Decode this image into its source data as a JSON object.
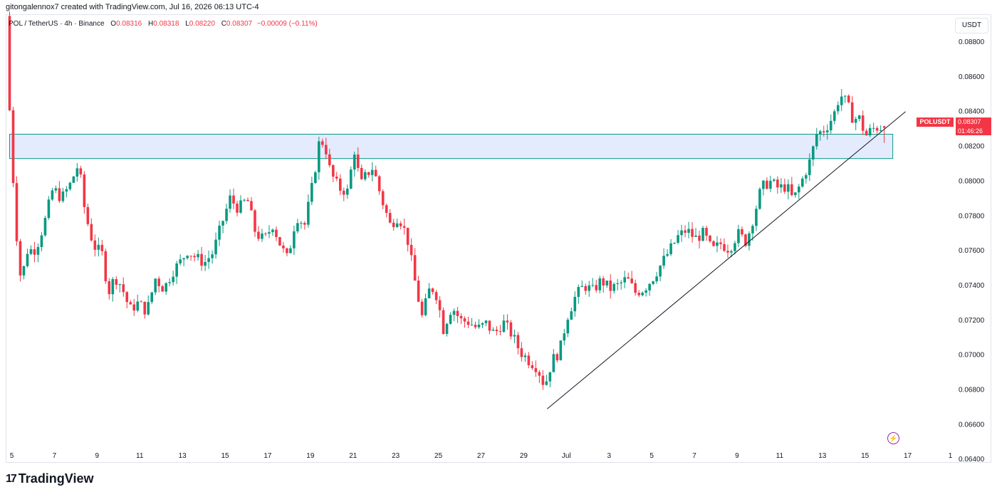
{
  "header": {
    "text": "gitongalennox7 created with TradingView.com, Jul 16, 2026 06:13 UTC-4"
  },
  "legend": {
    "symbol": "POL / TetherUS · 4h · Binance",
    "o_label": "O",
    "o": "0.08316",
    "h_label": "H",
    "h": "0.08318",
    "l_label": "L",
    "l": "0.08220",
    "c_label": "C",
    "c": "0.08307",
    "change": "−0.00009 (−0.11%)"
  },
  "currency": "USDT",
  "price_tag": {
    "symbol": "POLUSDT",
    "price": "0.08307",
    "countdown": "01:46:26"
  },
  "brand": {
    "name": "TradingView",
    "mark": "17"
  },
  "colors": {
    "up": "#089981",
    "down": "#f23645",
    "zone_fill": "#e3ebfd",
    "zone_border": "#089981",
    "trendline": "#131722"
  },
  "chart_data": {
    "type": "candlestick",
    "title": "POL / TetherUS · 4h · Binance",
    "ylim": [
      0.0638,
      0.0896
    ],
    "y_ticks": [
      "0.08800",
      "0.08600",
      "0.08400",
      "0.08200",
      "0.08000",
      "0.07800",
      "0.07600",
      "0.07400",
      "0.07200",
      "0.07000",
      "0.06800",
      "0.06600",
      "0.06400"
    ],
    "x_ticks": [
      "5",
      "7",
      "9",
      "11",
      "13",
      "15",
      "17",
      "19",
      "21",
      "23",
      "25",
      "27",
      "29",
      "Jul",
      "3",
      "5",
      "7",
      "9",
      "11",
      "13",
      "15",
      "17",
      "1"
    ],
    "x_tick_days": [
      5,
      7,
      9,
      11,
      13,
      15,
      17,
      19,
      21,
      23,
      25,
      27,
      29,
      31,
      33,
      35,
      37,
      39,
      41,
      43,
      45,
      47,
      49
    ],
    "x_range_days": [
      4.85,
      49.05
    ],
    "zone": {
      "top": 0.0827,
      "bottom": 0.0813,
      "from_day": 4.9,
      "to_day": 46.3
    },
    "trendline": {
      "from": [
        30.1,
        0.0669
      ],
      "to": [
        46.9,
        0.084
      ]
    },
    "anchors": [
      [
        4.9,
        0.0895
      ],
      [
        5.1,
        0.083
      ],
      [
        5.35,
        0.0775
      ],
      [
        5.6,
        0.0742
      ],
      [
        5.9,
        0.076
      ],
      [
        6.3,
        0.0761
      ],
      [
        6.7,
        0.0776
      ],
      [
        7.1,
        0.0796
      ],
      [
        7.5,
        0.079
      ],
      [
        7.9,
        0.0798
      ],
      [
        8.3,
        0.081
      ],
      [
        8.6,
        0.0782
      ],
      [
        9.0,
        0.0763
      ],
      [
        9.4,
        0.0758
      ],
      [
        9.7,
        0.0736
      ],
      [
        10.0,
        0.0745
      ],
      [
        10.3,
        0.074
      ],
      [
        10.7,
        0.0726
      ],
      [
        11.1,
        0.073
      ],
      [
        11.5,
        0.0725
      ],
      [
        11.9,
        0.0744
      ],
      [
        12.3,
        0.0738
      ],
      [
        12.7,
        0.0748
      ],
      [
        13.1,
        0.0754
      ],
      [
        13.4,
        0.076
      ],
      [
        13.8,
        0.0756
      ],
      [
        14.2,
        0.0753
      ],
      [
        14.6,
        0.0759
      ],
      [
        15.0,
        0.0775
      ],
      [
        15.4,
        0.079
      ],
      [
        15.8,
        0.0784
      ],
      [
        16.2,
        0.079
      ],
      [
        16.6,
        0.077
      ],
      [
        17.0,
        0.0766
      ],
      [
        17.4,
        0.0775
      ],
      [
        17.8,
        0.0762
      ],
      [
        18.1,
        0.0755
      ],
      [
        18.5,
        0.078
      ],
      [
        18.9,
        0.0775
      ],
      [
        19.3,
        0.08
      ],
      [
        19.6,
        0.0824
      ],
      [
        19.85,
        0.0821
      ],
      [
        20.1,
        0.0805
      ],
      [
        20.5,
        0.0796
      ],
      [
        20.9,
        0.0794
      ],
      [
        21.25,
        0.0819
      ],
      [
        21.5,
        0.0797
      ],
      [
        21.8,
        0.0804
      ],
      [
        22.1,
        0.0808
      ],
      [
        22.5,
        0.079
      ],
      [
        22.9,
        0.0775
      ],
      [
        23.3,
        0.078
      ],
      [
        23.7,
        0.0768
      ],
      [
        24.1,
        0.074
      ],
      [
        24.4,
        0.0722
      ],
      [
        24.8,
        0.074
      ],
      [
        25.1,
        0.0734
      ],
      [
        25.4,
        0.0715
      ],
      [
        25.8,
        0.0728
      ],
      [
        26.2,
        0.072
      ],
      [
        26.6,
        0.0719
      ],
      [
        27.0,
        0.0715
      ],
      [
        27.4,
        0.0718
      ],
      [
        27.8,
        0.0712
      ],
      [
        28.2,
        0.0719
      ],
      [
        28.6,
        0.0712
      ],
      [
        29.0,
        0.0702
      ],
      [
        29.4,
        0.0697
      ],
      [
        29.8,
        0.0693
      ],
      [
        30.15,
        0.0682
      ],
      [
        30.5,
        0.0697
      ],
      [
        30.85,
        0.0702
      ],
      [
        31.2,
        0.0722
      ],
      [
        31.6,
        0.0734
      ],
      [
        32.0,
        0.074
      ],
      [
        32.4,
        0.0737
      ],
      [
        32.8,
        0.0743
      ],
      [
        33.2,
        0.0738
      ],
      [
        33.6,
        0.074
      ],
      [
        34.0,
        0.0744
      ],
      [
        34.4,
        0.0736
      ],
      [
        34.8,
        0.0738
      ],
      [
        35.2,
        0.0744
      ],
      [
        35.6,
        0.0752
      ],
      [
        36.0,
        0.076
      ],
      [
        36.4,
        0.0768
      ],
      [
        36.8,
        0.0772
      ],
      [
        37.2,
        0.0767
      ],
      [
        37.6,
        0.077
      ],
      [
        38.0,
        0.076
      ],
      [
        38.4,
        0.0764
      ],
      [
        38.8,
        0.0761
      ],
      [
        39.2,
        0.077
      ],
      [
        39.6,
        0.0765
      ],
      [
        40.0,
        0.0782
      ],
      [
        40.3,
        0.0796
      ],
      [
        40.7,
        0.08
      ],
      [
        41.1,
        0.0796
      ],
      [
        41.5,
        0.0797
      ],
      [
        41.8,
        0.0789
      ],
      [
        42.2,
        0.08
      ],
      [
        42.6,
        0.0812
      ],
      [
        42.9,
        0.0827
      ],
      [
        43.3,
        0.083
      ],
      [
        43.7,
        0.0838
      ],
      [
        44.0,
        0.085
      ],
      [
        44.3,
        0.0845
      ],
      [
        44.6,
        0.0836
      ],
      [
        44.9,
        0.0836
      ],
      [
        45.2,
        0.0826
      ],
      [
        45.5,
        0.083
      ],
      [
        45.75,
        0.0831
      ],
      [
        45.95,
        0.0831
      ]
    ],
    "last_candle": {
      "o": 0.08316,
      "h": 0.08318,
      "l": 0.0822,
      "c": 0.08307
    }
  }
}
